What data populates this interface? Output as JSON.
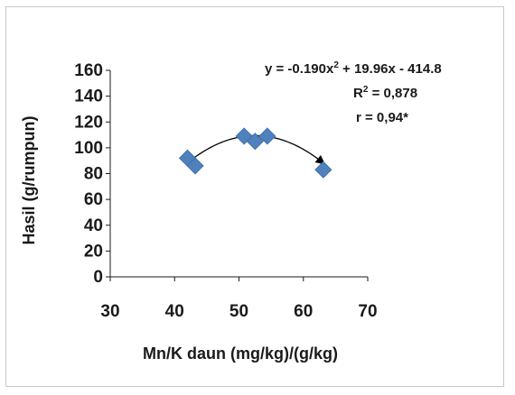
{
  "chart_data": {
    "type": "scatter",
    "title": "",
    "xlabel": "Mn/K  daun (mg/kg)/(g/kg)",
    "ylabel": "Hasil  (g/rumpun)",
    "xlim": [
      30,
      70
    ],
    "ylim": [
      0,
      160
    ],
    "xticks": [
      30,
      40,
      50,
      60,
      70
    ],
    "yticks": [
      0,
      20,
      40,
      60,
      80,
      100,
      120,
      140,
      160
    ],
    "grid": false,
    "legend": "none",
    "marker": "diamond",
    "marker_color": "#4f81bd",
    "points": [
      {
        "x": 42.0,
        "y": 92
      },
      {
        "x": 43.2,
        "y": 86
      },
      {
        "x": 50.8,
        "y": 109
      },
      {
        "x": 52.5,
        "y": 105
      },
      {
        "x": 54.4,
        "y": 109
      },
      {
        "x": 63.1,
        "y": 83
      }
    ],
    "trendline": {
      "type": "polynomial",
      "order": 2,
      "coefficients": {
        "a": -0.19,
        "b": 19.96,
        "c": -414.8
      },
      "x_range": [
        42,
        63.1
      ],
      "color": "#000000"
    },
    "annotations": {
      "equation": {
        "prefix": "y = -0.190x",
        "sup": "2",
        "suffix": " + 19.96x - 414.8"
      },
      "r2": {
        "prefix": "R",
        "sup": "2",
        "suffix": " = 0,878"
      },
      "r": "r = 0,94*"
    }
  }
}
